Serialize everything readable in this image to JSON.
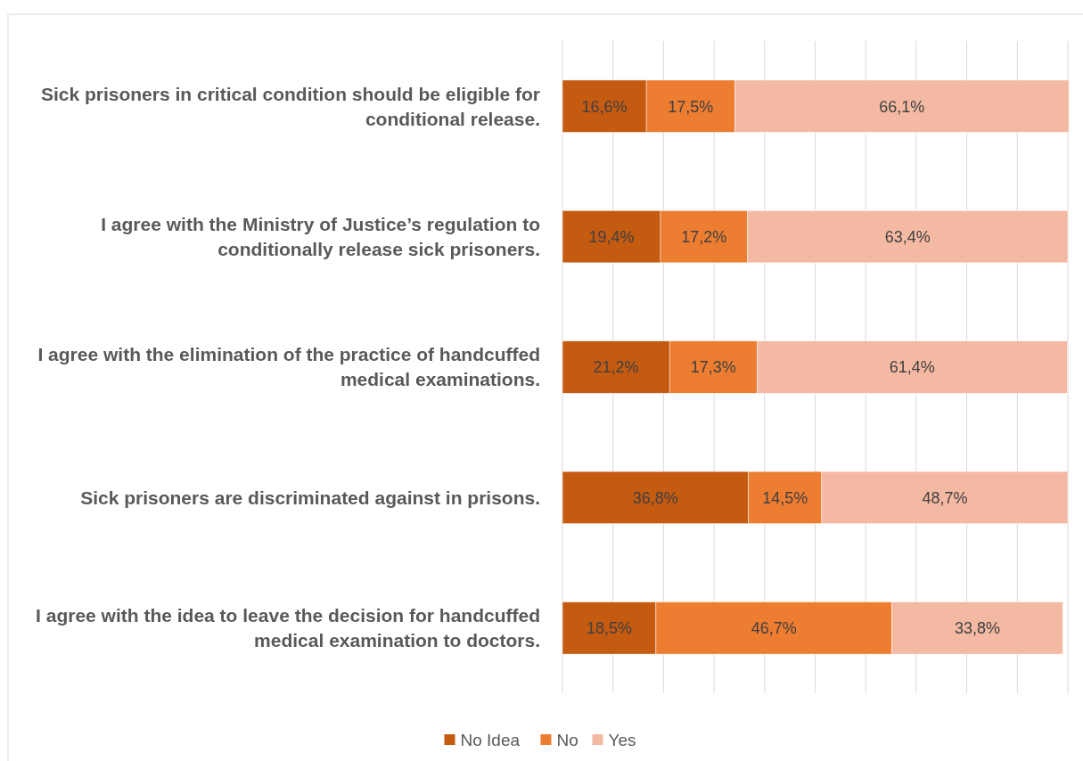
{
  "chart_data": {
    "type": "bar",
    "orientation": "horizontal",
    "stacked": true,
    "categories": [
      "Sick prisoners in critical condition should be eligible for conditional release.",
      "I agree with the Ministry of Justice’s regulation to conditionally release sick prisoners.",
      "I agree with the elimination of the practice of handcuffed medical examinations.",
      "Sick prisoners are discriminated against in prisons.",
      "I agree with the idea to leave the decision for handcuffed medical examination to doctors."
    ],
    "series": [
      {
        "name": "No Idea",
        "color": "#c55a11",
        "values": [
          16.6,
          19.4,
          21.2,
          36.8,
          18.5
        ],
        "value_labels": [
          "16,6%",
          "19,4%",
          "21,2%",
          "36,8%",
          "18,5%"
        ]
      },
      {
        "name": "No",
        "color": "#ed7d31",
        "values": [
          17.5,
          17.2,
          17.3,
          14.5,
          46.7
        ],
        "value_labels": [
          "17,5%",
          "17,2%",
          "17,3%",
          "14,5%",
          "46,7%"
        ]
      },
      {
        "name": "Yes",
        "color": "#f4b9a2",
        "values": [
          66.1,
          63.4,
          61.4,
          48.7,
          33.8
        ],
        "value_labels": [
          "66,1%",
          "63,4%",
          "61,4%",
          "48,7%",
          "33,8%"
        ]
      }
    ],
    "xlim": [
      0,
      100
    ],
    "xticks": [
      {
        "value": 0,
        "label": null
      },
      {
        "value": 10,
        "label": null
      },
      {
        "value": 20,
        "label": null
      },
      {
        "value": 30,
        "label": null
      },
      {
        "value": 40,
        "label": null
      },
      {
        "value": 50,
        "label": null
      },
      {
        "value": 60,
        "label": null
      },
      {
        "value": 70,
        "label": null
      },
      {
        "value": 80,
        "label": null
      },
      {
        "value": 90,
        "label": null
      },
      {
        "value": 100,
        "label": null
      }
    ],
    "grid": "x",
    "tick_labels": "y",
    "legend": "bottom"
  }
}
